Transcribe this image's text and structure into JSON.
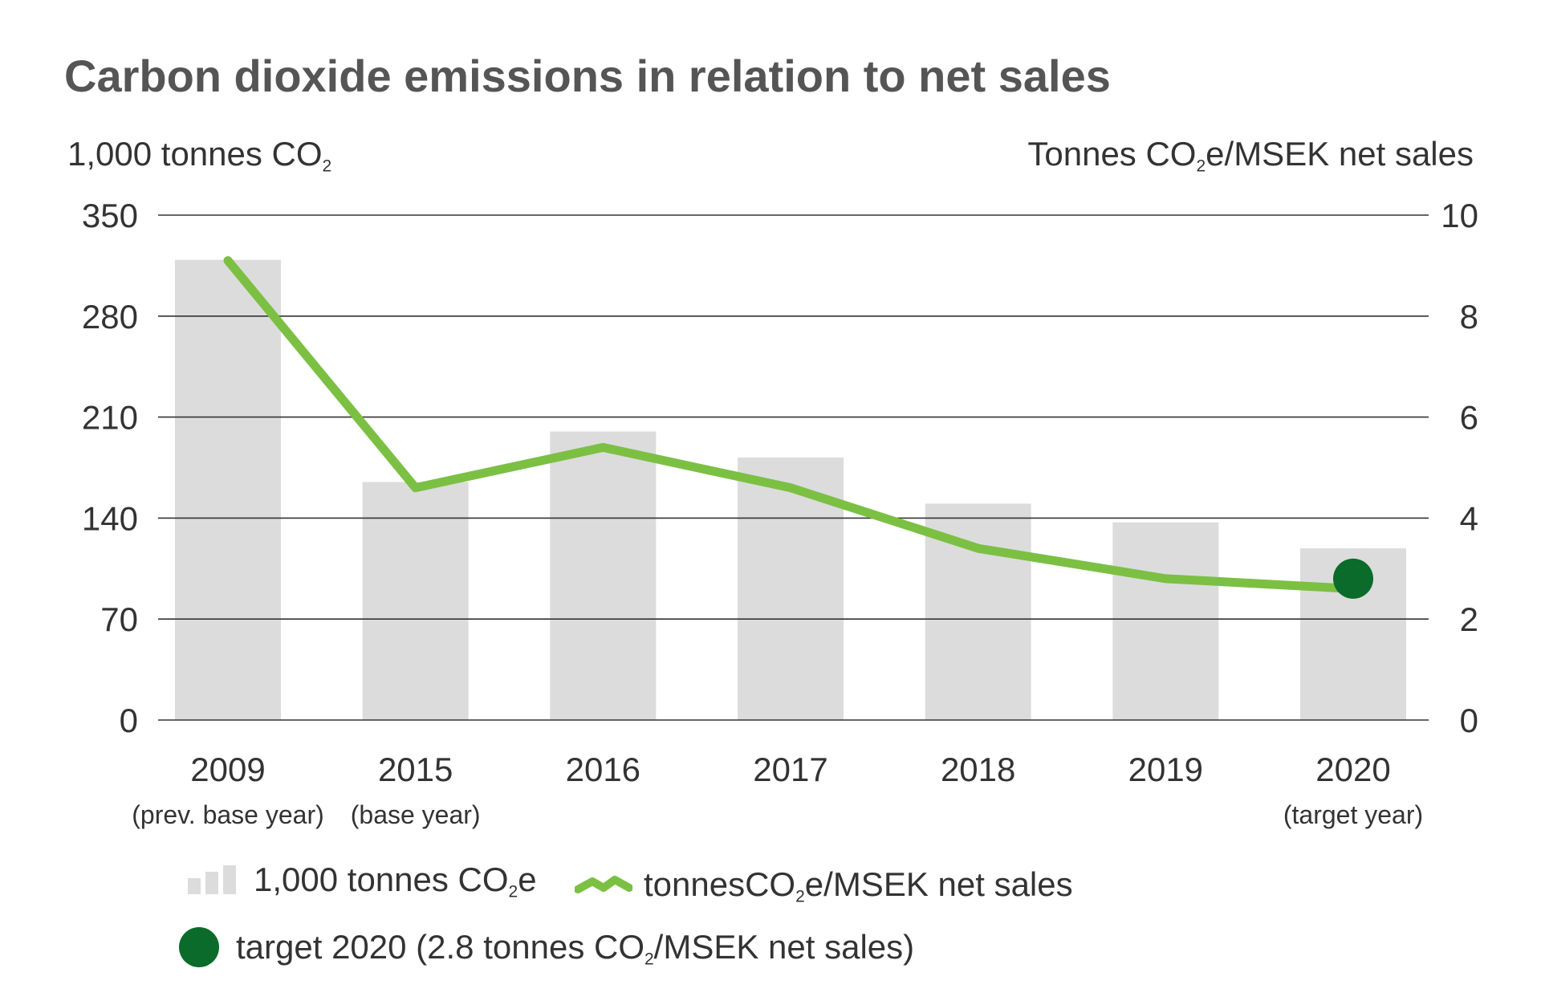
{
  "chart_data": {
    "type": "bar",
    "title": "Carbon dioxide emissions in relation to net sales",
    "ylabel_left": {
      "main": "1,000 tonnes CO",
      "sub": "2",
      "tail": ""
    },
    "ylabel_right": {
      "main": "Tonnes CO",
      "sub": "2",
      "tail": "e/MSEK net sales"
    },
    "categories": [
      "2009",
      "2015",
      "2016",
      "2017",
      "2018",
      "2019",
      "2020"
    ],
    "category_notes": [
      "(prev. base year)",
      "(base year)",
      "",
      "",
      "",
      "",
      "(target year)"
    ],
    "left_ylim": [
      0,
      350
    ],
    "left_ticks": [
      "0",
      "70",
      "140",
      "210",
      "280",
      "350"
    ],
    "right_ylim": [
      0,
      10
    ],
    "right_ticks": [
      "0",
      "2",
      "4",
      "6",
      "8",
      "10"
    ],
    "grid": true,
    "series": [
      {
        "name": "1,000 tonnes CO2e",
        "kind": "bar",
        "axis": "left",
        "color": "#dcdcdc",
        "values": [
          319,
          165,
          200,
          182,
          150,
          137,
          119
        ]
      },
      {
        "name": "tonnesCO2e/MSEK net sales",
        "kind": "line",
        "axis": "right",
        "color": "#7bc043",
        "values": [
          9.1,
          4.6,
          5.4,
          4.6,
          3.4,
          2.8,
          2.6
        ]
      },
      {
        "name": "target 2020 (2.8 tonnes CO2/MSEK net sales)",
        "kind": "point",
        "axis": "right",
        "color": "#0a6b2a",
        "category": "2020",
        "value": 2.8
      }
    ],
    "legend_placement": "bottom",
    "legend": [
      {
        "main": "1,000 tonnes CO",
        "sub": "2",
        "tail": "e"
      },
      {
        "main": "tonnesCO",
        "sub": "2",
        "tail": "e/MSEK net sales"
      },
      {
        "main": "target 2020 (2.8 tonnes CO",
        "sub": "2",
        "tail": "/MSEK net sales)"
      }
    ]
  }
}
